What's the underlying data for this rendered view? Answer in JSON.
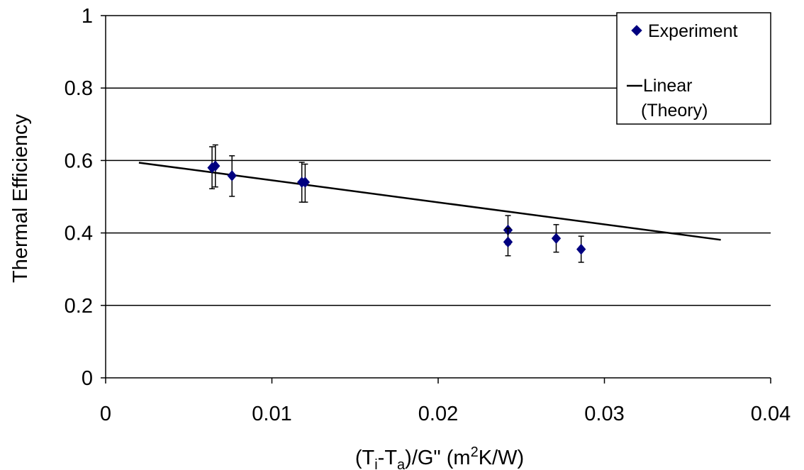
{
  "chart_data": {
    "type": "scatter",
    "xlabel": {
      "parts": [
        "(T",
        "i",
        "-T",
        "a",
        ")/G\" (m",
        "2",
        "K/W)"
      ]
    },
    "ylabel": "Thermal Efficiency",
    "xlim": [
      0,
      0.04
    ],
    "ylim": [
      0,
      1
    ],
    "x_ticks": [
      0,
      0.01,
      0.02,
      0.03,
      0.04
    ],
    "x_tick_labels": [
      "0",
      "0.01",
      "0.02",
      "0.03",
      "0.04"
    ],
    "y_ticks": [
      0,
      0.2,
      0.4,
      0.6,
      0.8,
      1
    ],
    "y_tick_labels": [
      "0",
      "0.2",
      "0.4",
      "0.6",
      "0.8",
      "1"
    ],
    "grid": "horizontal",
    "legend_position": "top-right",
    "series": [
      {
        "name": "Experiment",
        "kind": "points",
        "marker": "diamond",
        "color": "#000080",
        "x": [
          0.0064,
          0.0066,
          0.0076,
          0.0118,
          0.012,
          0.0242,
          0.0242,
          0.0271,
          0.0286
        ],
        "y": [
          0.58,
          0.585,
          0.558,
          0.54,
          0.54,
          0.408,
          0.375,
          0.385,
          0.355
        ],
        "err_low": [
          0.058,
          0.058,
          0.057,
          0.055,
          0.055,
          0.04,
          0.038,
          0.038,
          0.036
        ],
        "err_high": [
          0.058,
          0.058,
          0.055,
          0.055,
          0.05,
          0.04,
          0.038,
          0.038,
          0.036
        ]
      },
      {
        "name": "Linear (Theory)",
        "legend_lines": [
          "Linear",
          "(Theory)"
        ],
        "kind": "line",
        "color": "#000000",
        "x": [
          0.002,
          0.037
        ],
        "y": [
          0.594,
          0.381
        ]
      }
    ]
  }
}
